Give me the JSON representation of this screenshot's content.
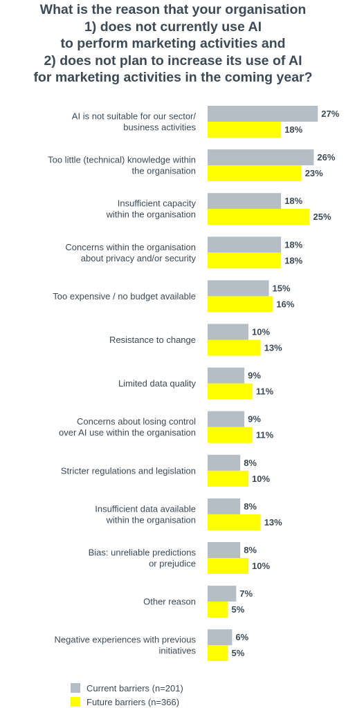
{
  "chart_data": {
    "type": "bar",
    "orientation": "horizontal",
    "title_lines": [
      "What is the reason that your organisation",
      "1) does not currently use AI",
      "to perform marketing activities and",
      "2) does not plan to increase its use of AI",
      "for marketing activities in the coming year?"
    ],
    "categories": [
      [
        "AI is not suitable for our sector/",
        "business activities"
      ],
      [
        "Too little (technical) knowledge within",
        "the organisation"
      ],
      [
        "Insufficient capacity",
        "within the organisation"
      ],
      [
        "Concerns within the organisation",
        "about privacy and/or security"
      ],
      [
        "Too expensive / no budget available"
      ],
      [
        "Resistance to change"
      ],
      [
        "Limited data quality"
      ],
      [
        "Concerns about losing control",
        "over AI use within the organisation"
      ],
      [
        "Stricter regulations and legislation"
      ],
      [
        "Insufficient data available",
        "within the organisation"
      ],
      [
        "Bias: unreliable predictions",
        "or prejudice"
      ],
      [
        "Other reason"
      ],
      [
        "Negative experiences with previous",
        "initiatives"
      ]
    ],
    "series": [
      {
        "name": "Current barriers (n=201)",
        "color": "#b5bec4",
        "values": [
          27,
          26,
          18,
          18,
          15,
          10,
          9,
          9,
          8,
          8,
          8,
          7,
          6
        ]
      },
      {
        "name": "Future barriers (n=366)",
        "color": "#ffff00",
        "values": [
          18,
          23,
          25,
          18,
          16,
          13,
          11,
          11,
          10,
          13,
          10,
          5,
          5
        ]
      }
    ],
    "value_suffix": "%",
    "legend_position": "bottom-left",
    "grid": false
  }
}
